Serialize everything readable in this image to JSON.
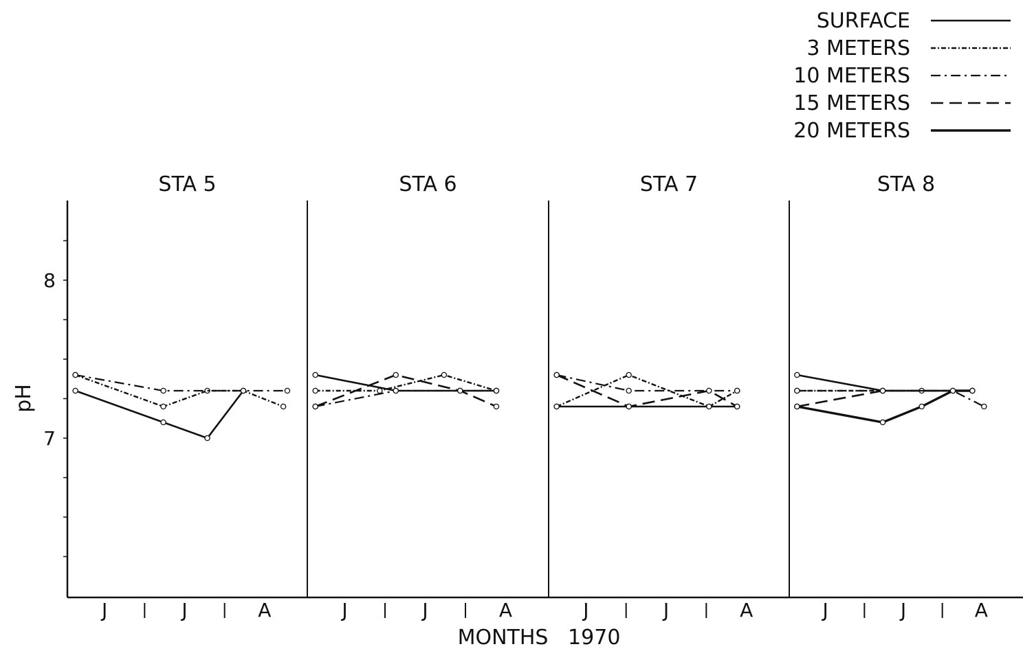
{
  "chart_data": {
    "type": "line",
    "xlabel": "MONTHS   1970",
    "ylabel": "pH",
    "ylim": [
      6.0,
      8.5
    ],
    "yticks": [
      "8",
      "7"
    ],
    "x_month_labels": [
      "J",
      "J",
      "A"
    ],
    "legend_position": "top-right",
    "series_names": [
      "SURFACE",
      "3 METERS",
      "10 METERS",
      "15 METERS",
      "20 METERS"
    ],
    "panels": [
      {
        "title": "STA 5",
        "series": [
          {
            "name": "SURFACE",
            "x": [
              0.1,
              1.2,
              1.75,
              2.2
            ],
            "values": [
              7.3,
              7.1,
              7.0,
              7.3
            ]
          },
          {
            "name": "3 METERS",
            "x": [
              0.1,
              1.2,
              1.75,
              2.2,
              2.7
            ],
            "values": [
              7.4,
              7.2,
              7.3,
              7.3,
              7.2
            ]
          },
          {
            "name": "10 METERS",
            "x": [
              0.1,
              1.2,
              2.2,
              2.75
            ],
            "values": [
              7.4,
              7.3,
              7.3,
              7.3
            ]
          }
        ]
      },
      {
        "title": "STA 6",
        "series": [
          {
            "name": "SURFACE",
            "x": [
              0.1,
              1.1,
              1.9,
              2.35
            ],
            "values": [
              7.4,
              7.3,
              7.3,
              7.3
            ]
          },
          {
            "name": "3 METERS",
            "x": [
              0.1,
              0.9,
              1.7,
              2.35
            ],
            "values": [
              7.3,
              7.3,
              7.4,
              7.3
            ]
          },
          {
            "name": "10 METERS",
            "x": [
              0.1,
              1.1,
              2.35
            ],
            "values": [
              7.2,
              7.3,
              7.3
            ]
          },
          {
            "name": "15 METERS",
            "x": [
              0.1,
              1.1,
              1.9,
              2.35
            ],
            "values": [
              7.2,
              7.4,
              7.3,
              7.2
            ]
          }
        ]
      },
      {
        "title": "STA 7",
        "series": [
          {
            "name": "SURFACE",
            "x": [
              0.1,
              1.0,
              2.35
            ],
            "values": [
              7.2,
              7.2,
              7.2
            ]
          },
          {
            "name": "3 METERS",
            "x": [
              0.1,
              1.0,
              2.0,
              2.35
            ],
            "values": [
              7.2,
              7.4,
              7.2,
              7.3
            ]
          },
          {
            "name": "10 METERS",
            "x": [
              0.1,
              1.0,
              2.35
            ],
            "values": [
              7.4,
              7.3,
              7.3
            ]
          },
          {
            "name": "15 METERS",
            "x": [
              0.1,
              1.0,
              2.0,
              2.35
            ],
            "values": [
              7.4,
              7.2,
              7.3,
              7.2
            ]
          }
        ]
      },
      {
        "title": "STA 8",
        "series": [
          {
            "name": "SURFACE",
            "x": [
              0.1,
              1.2,
              2.35
            ],
            "values": [
              7.4,
              7.3,
              7.3
            ]
          },
          {
            "name": "3 METERS",
            "x": [
              0.1,
              1.2,
              1.7,
              2.35
            ],
            "values": [
              7.3,
              7.3,
              7.3,
              7.3
            ]
          },
          {
            "name": "10 METERS",
            "x": [
              0.1,
              1.2,
              2.1,
              2.5
            ],
            "values": [
              7.3,
              7.3,
              7.3,
              7.2
            ]
          },
          {
            "name": "15 METERS",
            "x": [
              0.1,
              1.2,
              2.35
            ],
            "values": [
              7.2,
              7.3,
              7.3
            ]
          },
          {
            "name": "20 METERS",
            "x": [
              0.1,
              1.2,
              1.7,
              2.1,
              2.35
            ],
            "values": [
              7.2,
              7.1,
              7.2,
              7.3,
              7.3
            ]
          }
        ]
      }
    ]
  }
}
